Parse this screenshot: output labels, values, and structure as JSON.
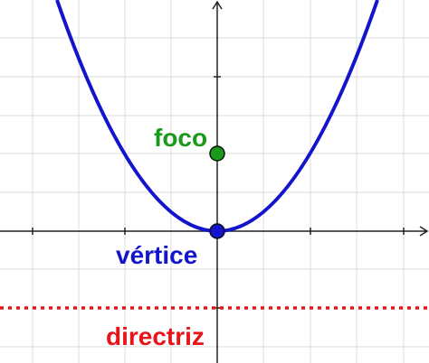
{
  "labels": {
    "focus": "foco",
    "vertex": "vértice",
    "directrix": "directriz"
  }
}
